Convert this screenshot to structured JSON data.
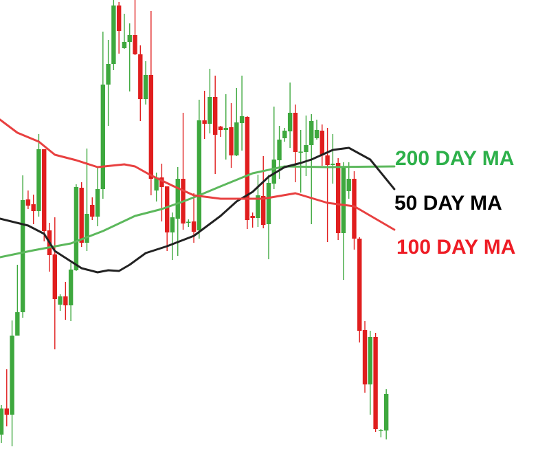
{
  "chart_data": {
    "type": "candlestick",
    "title": "",
    "xlabel": "",
    "ylabel": "",
    "grid": false,
    "colors": {
      "up": "#3ea83e",
      "down": "#e01e1e"
    },
    "candles": [
      [
        3.4,
        7.7,
        2.2,
        7.2
      ],
      [
        7.2,
        12.9,
        4.6,
        6.3
      ],
      [
        6.3,
        20.0,
        1.7,
        17.8
      ],
      [
        17.8,
        28.1,
        17.8,
        21.2
      ],
      [
        21.2,
        41.1,
        20.4,
        37.5
      ],
      [
        37.6,
        38.9,
        36.2,
        36.7
      ],
      [
        36.9,
        38.3,
        34.0,
        35.9
      ],
      [
        35.9,
        47.1,
        35.1,
        44.9
      ],
      [
        44.9,
        44.9,
        31.5,
        33.0
      ],
      [
        33.1,
        34.2,
        27.1,
        29.5
      ],
      [
        29.6,
        35.0,
        15.8,
        23.1
      ],
      [
        22.3,
        23.8,
        21.4,
        23.5
      ],
      [
        23.5,
        25.6,
        20.1,
        22.2
      ],
      [
        22.2,
        28.4,
        19.9,
        27.4
      ],
      [
        27.3,
        39.8,
        27.2,
        39.4
      ],
      [
        39.3,
        40.1,
        30.7,
        31.3
      ],
      [
        31.3,
        45.0,
        30.1,
        35.5
      ],
      [
        36.8,
        37.9,
        34.6,
        35.1
      ],
      [
        35.1,
        42.2,
        33.7,
        39.1
      ],
      [
        39.1,
        62.0,
        37.7,
        54.3
      ],
      [
        54.3,
        60.8,
        48.3,
        57.3
      ],
      [
        57.3,
        66.6,
        56.4,
        65.8
      ],
      [
        65.8,
        66.3,
        58.8,
        62.1
      ],
      [
        59.6,
        64.6,
        59.5,
        60.5
      ],
      [
        60.5,
        63.2,
        53.3,
        61.5
      ],
      [
        61.5,
        66.6,
        58.6,
        58.7
      ],
      [
        58.7,
        60.0,
        49.0,
        52.2
      ],
      [
        52.2,
        57.7,
        51.4,
        55.7
      ],
      [
        55.7,
        65.0,
        38.2,
        40.6
      ],
      [
        38.9,
        41.5,
        37.3,
        40.8
      ],
      [
        40.8,
        42.8,
        34.4,
        39.4
      ],
      [
        39.5,
        39.5,
        30.1,
        32.8
      ],
      [
        32.8,
        35.7,
        28.8,
        35.0
      ],
      [
        34.8,
        42.3,
        29.4,
        40.6
      ],
      [
        40.6,
        50.2,
        33.2,
        34.1
      ],
      [
        34.3,
        34.7,
        33.6,
        34.35
      ],
      [
        34.4,
        38.5,
        31.3,
        32.9
      ],
      [
        33.1,
        52.1,
        31.9,
        49.1
      ],
      [
        49.1,
        53.4,
        46.4,
        48.6
      ],
      [
        48.6,
        56.6,
        47.2,
        52.5
      ],
      [
        52.5,
        55.6,
        41.3,
        47.0
      ],
      [
        48.2,
        48.3,
        46.7,
        47.7
      ],
      [
        47.7,
        52.9,
        43.4,
        48.0
      ],
      [
        48.1,
        51.6,
        42.2,
        44.0
      ],
      [
        44.0,
        53.8,
        43.9,
        48.8
      ],
      [
        48.7,
        55.6,
        44.7,
        49.7
      ],
      [
        49.6,
        49.7,
        33.3,
        34.6
      ],
      [
        35.2,
        35.7,
        33.5,
        34.9
      ],
      [
        34.9,
        41.2,
        33.6,
        38.2
      ],
      [
        38.1,
        43.9,
        33.4,
        33.9
      ],
      [
        34.0,
        41.2,
        28.9,
        40.0
      ],
      [
        39.9,
        51.1,
        39.1,
        43.4
      ],
      [
        43.3,
        48.3,
        40.6,
        46.3
      ],
      [
        46.5,
        48.0,
        46.0,
        47.6
      ],
      [
        47.5,
        54.6,
        45.1,
        50.2
      ],
      [
        50.2,
        51.4,
        40.1,
        44.5
      ],
      [
        44.5,
        47.7,
        38.6,
        44.55
      ],
      [
        44.5,
        49.8,
        41.0,
        45.5
      ],
      [
        45.5,
        50.0,
        34.0,
        49.0
      ],
      [
        46.5,
        49.2,
        46.3,
        47.7
      ],
      [
        47.6,
        48.5,
        42.5,
        44.0
      ],
      [
        44.0,
        48.0,
        31.4,
        42.6
      ],
      [
        42.6,
        47.1,
        39.9,
        42.8
      ],
      [
        42.9,
        43.6,
        31.7,
        32.7
      ],
      [
        32.7,
        43.0,
        25.9,
        42.2
      ],
      [
        38.8,
        43.0,
        37.7,
        40.6
      ],
      [
        40.6,
        41.7,
        30.3,
        31.9
      ],
      [
        31.9,
        32.1,
        16.8,
        18.5
      ],
      [
        18.6,
        19.9,
        9.5,
        10.7
      ],
      [
        10.7,
        18.5,
        6.3,
        17.6
      ],
      [
        17.6,
        18.2,
        3.8,
        4.2
      ],
      [
        4.0,
        4.2,
        3.0,
        4.05
      ],
      [
        4.0,
        10.0,
        2.7,
        9.3
      ]
    ],
    "candle_fields": [
      "open",
      "high",
      "low",
      "close"
    ],
    "series": [
      {
        "name": "200 DAY MA",
        "color": "#5cb85c",
        "points": [
          [
            0,
            29.2
          ],
          [
            6,
            30.2
          ],
          [
            13,
            31.2
          ],
          [
            19,
            33.0
          ],
          [
            25,
            35.2
          ],
          [
            30,
            36.2
          ],
          [
            34,
            37.3
          ],
          [
            37,
            38.2
          ],
          [
            41,
            39.5
          ],
          [
            47,
            41.4
          ],
          [
            53,
            42.4
          ],
          [
            61,
            42.3
          ],
          [
            73,
            42.4
          ]
        ]
      },
      {
        "name": "50 DAY MA",
        "color": "#222222",
        "points": [
          [
            0,
            34.8
          ],
          [
            5,
            33.8
          ],
          [
            8,
            32.6
          ],
          [
            10,
            30.1
          ],
          [
            13,
            28.6
          ],
          [
            15,
            27.6
          ],
          [
            18,
            27.0
          ],
          [
            20,
            27.3
          ],
          [
            22,
            27.2
          ],
          [
            24,
            28.1
          ],
          [
            27,
            29.8
          ],
          [
            31,
            30.8
          ],
          [
            33,
            31.4
          ],
          [
            36,
            32.3
          ],
          [
            41,
            35.2
          ],
          [
            44,
            37.3
          ],
          [
            47,
            38.7
          ],
          [
            50,
            40.9
          ],
          [
            53,
            42.3
          ],
          [
            56,
            42.9
          ],
          [
            58,
            43.4
          ],
          [
            62,
            44.8
          ],
          [
            65,
            45.1
          ],
          [
            69,
            43.4
          ],
          [
            73,
            39.1
          ]
        ]
      },
      {
        "name": "100 DAY MA",
        "color": "#e84040",
        "points": [
          [
            0,
            49.2
          ],
          [
            3,
            47.3
          ],
          [
            7,
            46.0
          ],
          [
            10,
            44.1
          ],
          [
            14,
            43.3
          ],
          [
            18,
            42.3
          ],
          [
            23,
            42.7
          ],
          [
            25,
            42.4
          ],
          [
            28,
            41.1
          ],
          [
            32,
            39.6
          ],
          [
            36,
            38.2
          ],
          [
            41,
            37.7
          ],
          [
            49,
            37.7
          ],
          [
            55,
            38.5
          ],
          [
            61,
            37.1
          ],
          [
            66,
            36.6
          ],
          [
            73,
            33.2
          ]
        ]
      }
    ],
    "labels": {
      "ma200": {
        "text": "200 DAY MA",
        "color": "#2db04a"
      },
      "ma50": {
        "text": "50 DAY MA",
        "color": "#000000"
      },
      "ma100": {
        "text": "100 DAY MA",
        "color": "#ee1c25"
      }
    }
  }
}
